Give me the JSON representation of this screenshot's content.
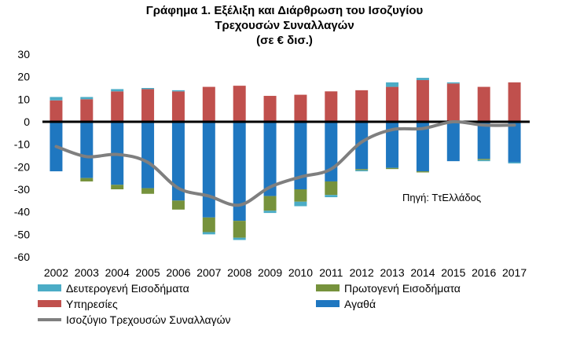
{
  "chart_data": {
    "type": "bar",
    "title_lines": [
      "Γράφημα 1. Εξέλιξη και Διάρθρωση του Ισοζυγίου",
      "Τρεχουσών Συναλλαγών",
      "(σε € δισ.)"
    ],
    "source_note": "Πηγή:  ΤτΕλλάδος",
    "categories": [
      "2002",
      "2003",
      "2004",
      "2005",
      "2006",
      "2007",
      "2008",
      "2009",
      "2010",
      "2011",
      "2012",
      "2013",
      "2014",
      "2015",
      "2016",
      "2017"
    ],
    "ylim": [
      -60,
      30
    ],
    "yticks": [
      30,
      20,
      10,
      0,
      -10,
      -20,
      -30,
      -40,
      -50,
      -60
    ],
    "stacked": true,
    "series": [
      {
        "name": "Αγαθά",
        "kind": "bar",
        "color": "#1f77c0",
        "values": [
          -22,
          -25,
          -28,
          -29.5,
          -35,
          -42.5,
          -44,
          -33,
          -30,
          -26.5,
          -21,
          -20.5,
          -22,
          -17.5,
          -16.5,
          -18
        ]
      },
      {
        "name": "Πρωτογενή  Εισοδήματα",
        "kind": "bar",
        "color": "#76923c",
        "values": [
          0,
          -1.5,
          -2,
          -2.5,
          -4,
          -6.5,
          -7.5,
          -6.5,
          -5.5,
          -6,
          -0.5,
          -0.5,
          -0.5,
          0,
          -0.5,
          0
        ]
      },
      {
        "name": "Υπηρεσίες",
        "kind": "bar",
        "color": "#c0504d",
        "values": [
          9.5,
          10,
          13.5,
          14.5,
          13.5,
          15.5,
          16,
          11.5,
          12,
          13.5,
          14,
          15.5,
          18.5,
          17,
          15.5,
          17.5
        ]
      },
      {
        "name": "Δευτερογενή  Εισοδήματα",
        "kind": "bar",
        "color": "#4bacc6",
        "values": [
          1.5,
          1,
          1,
          0.5,
          0.5,
          -1,
          -1,
          -1,
          -2,
          -1,
          -0.5,
          2,
          1,
          0.5,
          -0.5,
          -0.5
        ]
      },
      {
        "name": "Ισοζύγιο Τρεχουσών Συναλλαγών",
        "kind": "line",
        "color": "#7f7f7f",
        "values": [
          -11,
          -15.5,
          -14.5,
          -18,
          -29.5,
          -33,
          -37,
          -29,
          -24.5,
          -21,
          -9,
          -3.5,
          -3,
          0,
          -1.5,
          -1.5
        ]
      }
    ],
    "legend_position": "bottom",
    "grid": false
  }
}
